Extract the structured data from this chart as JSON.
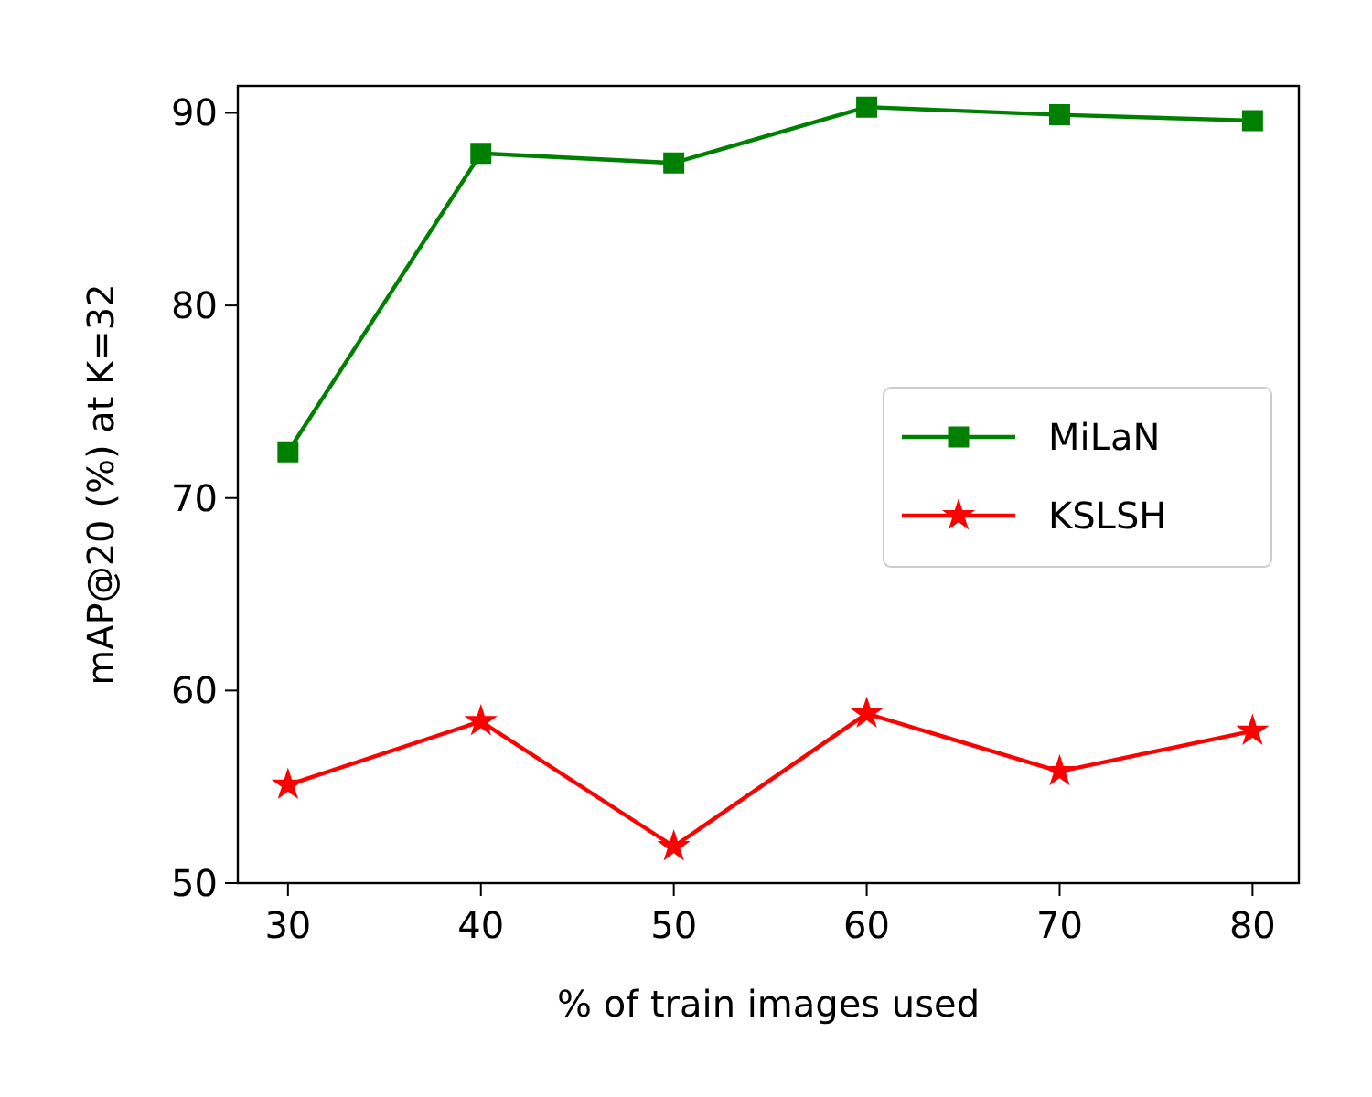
{
  "chart_data": {
    "type": "line",
    "xlabel": "% of train images used",
    "ylabel": "mAP@20 (%) at K=32",
    "x": [
      30,
      40,
      50,
      60,
      70,
      80
    ],
    "series": [
      {
        "name": "MiLaN",
        "color": "#008000",
        "marker": "square",
        "values": [
          72.4,
          87.9,
          87.4,
          90.3,
          89.9,
          89.6
        ]
      },
      {
        "name": "KSLSH",
        "color": "#ff0000",
        "marker": "star",
        "values": [
          55.1,
          58.4,
          51.9,
          58.8,
          55.8,
          57.9
        ]
      }
    ],
    "xlim": [
      27.4,
      82.4
    ],
    "ylim": [
      50,
      91.4
    ],
    "xticks": [
      30,
      40,
      50,
      60,
      70,
      80
    ],
    "yticks": [
      50,
      60,
      70,
      80,
      90
    ],
    "legend": "right",
    "grid": false,
    "line_style": "solid"
  }
}
